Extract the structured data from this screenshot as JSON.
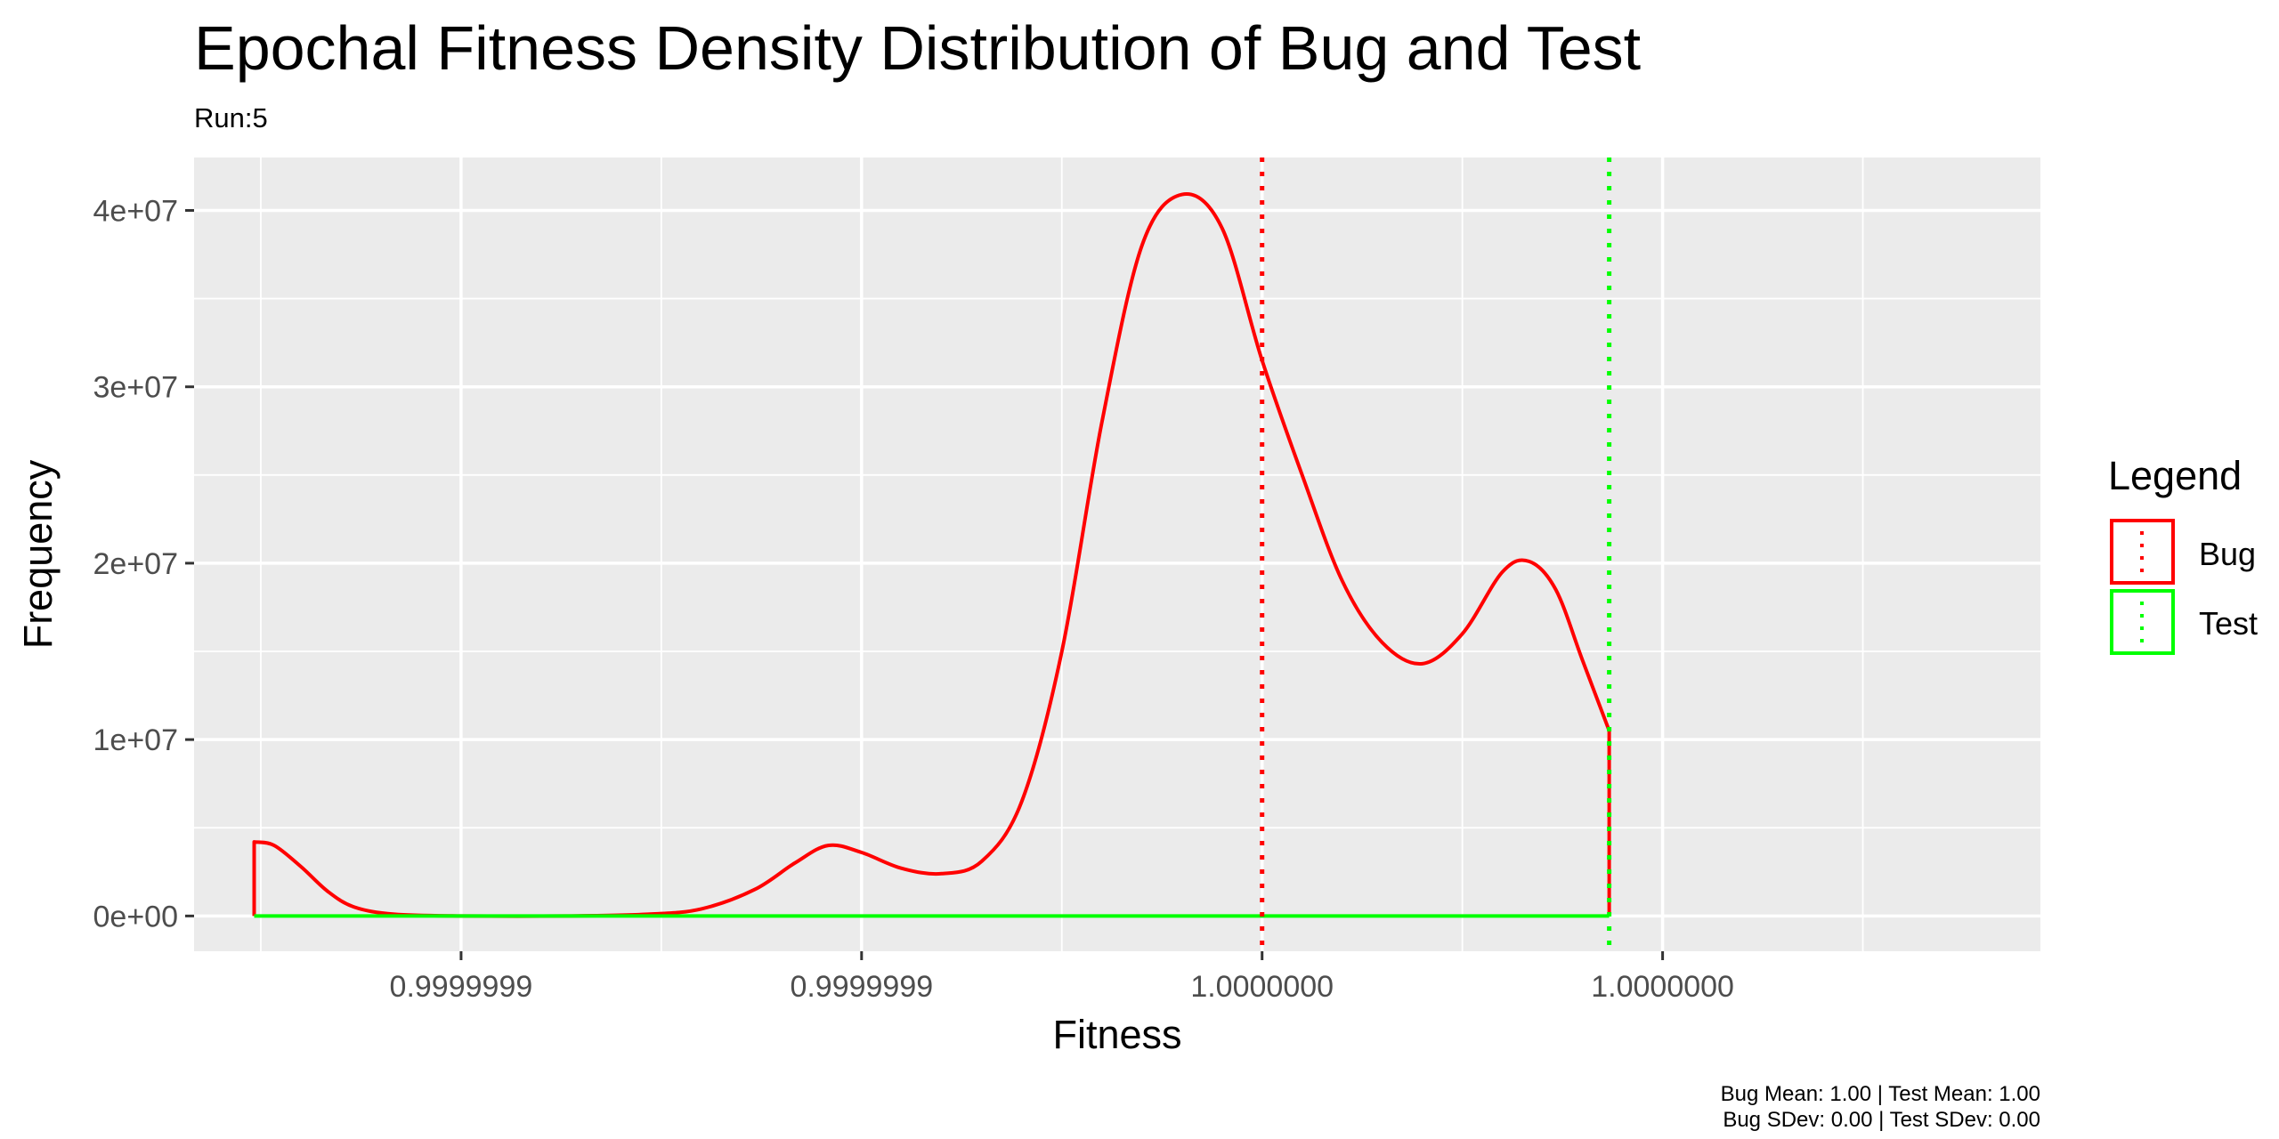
{
  "chart_data": {
    "type": "line",
    "title": "Epochal Fitness Density Distribution of Bug and Test",
    "subtitle": "Run:5",
    "xlabel": "Fitness",
    "ylabel": "Frequency",
    "x_tick_labels": [
      "0.9999999",
      "0.9999999",
      "1.0000000",
      "1.0000000"
    ],
    "y_ticks": [
      0,
      10000000,
      20000000,
      30000000,
      40000000
    ],
    "y_tick_labels": [
      "0e+00",
      "1e+07",
      "2e+07",
      "3e+07",
      "4e+07"
    ],
    "ylim": [
      -2000000,
      43000000
    ],
    "x_units": "relative (tick labels collapse to 0.9999999 / 1.0000000)",
    "grid": true,
    "legend": {
      "title": "Legend",
      "position": "right",
      "entries": [
        {
          "name": "Bug",
          "color": "#ff0000"
        },
        {
          "name": "Test",
          "color": "#00ff00"
        }
      ]
    },
    "series": [
      {
        "name": "Bug",
        "color": "#ff0000",
        "density_points": [
          [
            0.045,
            0
          ],
          [
            0.045,
            4200000
          ],
          [
            0.06,
            4000000
          ],
          [
            0.08,
            2800000
          ],
          [
            0.1,
            1400000
          ],
          [
            0.12,
            500000
          ],
          [
            0.15,
            100000
          ],
          [
            0.2,
            0
          ],
          [
            0.28,
            0
          ],
          [
            0.34,
            100000
          ],
          [
            0.38,
            400000
          ],
          [
            0.42,
            1500000
          ],
          [
            0.45,
            3000000
          ],
          [
            0.475,
            4000000
          ],
          [
            0.5,
            3600000
          ],
          [
            0.53,
            2700000
          ],
          [
            0.56,
            2400000
          ],
          [
            0.59,
            3100000
          ],
          [
            0.62,
            6500000
          ],
          [
            0.65,
            15000000
          ],
          [
            0.68,
            28000000
          ],
          [
            0.71,
            38000000
          ],
          [
            0.74,
            40900000
          ],
          [
            0.77,
            39000000
          ],
          [
            0.8,
            31500000
          ],
          [
            0.83,
            25000000
          ],
          [
            0.86,
            19000000
          ],
          [
            0.89,
            15500000
          ],
          [
            0.92,
            14300000
          ],
          [
            0.95,
            16000000
          ],
          [
            0.98,
            19500000
          ],
          [
            1.0,
            20100000
          ],
          [
            1.02,
            18500000
          ],
          [
            1.04,
            14500000
          ],
          [
            1.06,
            10500000
          ],
          [
            1.06,
            0
          ]
        ],
        "mean_line_x": 0.8
      },
      {
        "name": "Test",
        "color": "#00ff00",
        "density_points": [
          [
            0.045,
            0
          ],
          [
            1.06,
            0
          ]
        ],
        "mean_line_x": 1.06
      }
    ],
    "caption": [
      "Bug Mean: 1.00 | Test Mean: 1.00",
      "Bug SDev: 0.00 | Test SDev: 0.00"
    ]
  }
}
